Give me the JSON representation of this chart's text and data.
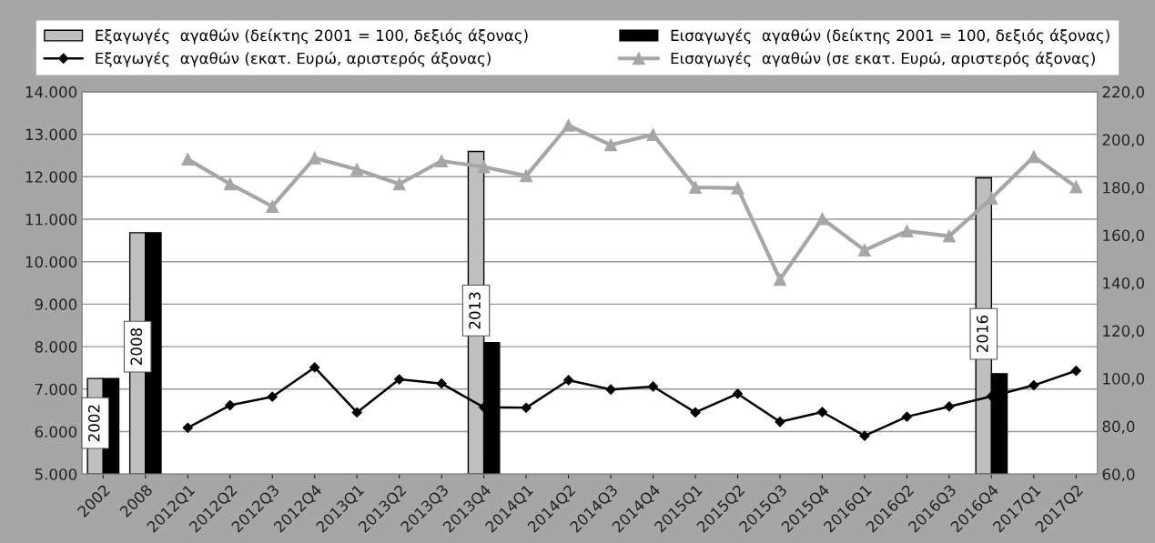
{
  "chart_data": {
    "type": "line",
    "categories": [
      "2002",
      "2008",
      "2012Q1",
      "2012Q2",
      "2012Q3",
      "2012Q4",
      "2013Q1",
      "2013Q2",
      "2013Q3",
      "2013Q4",
      "2014Q1",
      "2014Q2",
      "2014Q3",
      "2014Q4",
      "2015Q1",
      "2015Q2",
      "2015Q3",
      "2015Q4",
      "2016Q1",
      "2016Q2",
      "2016Q3",
      "2016Q4",
      "2017Q1",
      "2017Q2"
    ],
    "series": [
      {
        "name": "Εξαγωγές  αγαθών (δείκτης 2001 = 100, δεξιός άξονας)",
        "type": "bar",
        "axis": "y2",
        "color": "#bfbfbf",
        "values": [
          100,
          161,
          null,
          null,
          null,
          null,
          null,
          null,
          null,
          195,
          null,
          null,
          null,
          null,
          null,
          null,
          null,
          null,
          null,
          null,
          null,
          184,
          null,
          null
        ]
      },
      {
        "name": "Εισαγωγές  αγαθών (δείκτης 2001 = 100, δεξιός άξονας)",
        "type": "bar",
        "axis": "y2",
        "color": "#000000",
        "values": [
          100,
          161,
          null,
          null,
          null,
          null,
          null,
          null,
          null,
          115,
          null,
          null,
          null,
          null,
          null,
          null,
          null,
          null,
          null,
          null,
          null,
          102,
          null,
          null
        ]
      },
      {
        "name": "Εξαγωγές  αγαθών (εκατ. Ευρώ, αριστερός άξονας)",
        "color": "#000000",
        "marker": "diamond",
        "values": [
          null,
          null,
          6090,
          6620,
          6820,
          7510,
          6450,
          7230,
          7130,
          6570,
          6560,
          7210,
          6990,
          7060,
          6450,
          6890,
          6230,
          6460,
          5900,
          6350,
          6590,
          6830,
          7090,
          7430
        ]
      },
      {
        "name": "Εισαγωγές  αγαθών (σε εκατ. Ευρώ, αριστερός άξονας)",
        "color": "#a6a6a6",
        "marker": "triangle",
        "values": [
          null,
          null,
          12410,
          11830,
          11300,
          12440,
          12170,
          11830,
          12370,
          12230,
          12020,
          13210,
          12750,
          12990,
          11750,
          11730,
          9580,
          11010,
          10270,
          10720,
          10600,
          11490,
          12470,
          11760
        ]
      }
    ],
    "ylim": [
      5000,
      14000
    ],
    "yticks": [
      {
        "value": 5000,
        "label": "5.000"
      },
      {
        "value": 6000,
        "label": "6.000"
      },
      {
        "value": 7000,
        "label": "7.000"
      },
      {
        "value": 8000,
        "label": "8.000"
      },
      {
        "value": 9000,
        "label": "9.000"
      },
      {
        "value": 10000,
        "label": "10.000"
      },
      {
        "value": 11000,
        "label": "11.000"
      },
      {
        "value": 12000,
        "label": "12.000"
      },
      {
        "value": 13000,
        "label": "13.000"
      },
      {
        "value": 14000,
        "label": "14.000"
      }
    ],
    "y2lim": [
      60,
      220
    ],
    "y2ticks": [
      {
        "value": 60,
        "label": "60,0"
      },
      {
        "value": 80,
        "label": "80,0"
      },
      {
        "value": 100,
        "label": "100,0"
      },
      {
        "value": 120,
        "label": "120,0"
      },
      {
        "value": 140,
        "label": "140,0"
      },
      {
        "value": 160,
        "label": "160,0"
      },
      {
        "value": 180,
        "label": "180,0"
      },
      {
        "value": 200,
        "label": "200,0"
      },
      {
        "value": 220,
        "label": "220,0"
      }
    ],
    "annotations": [
      {
        "text": "2002",
        "x": "2002",
        "y": 6200
      },
      {
        "text": "2008",
        "x": "2008",
        "y": 8000
      },
      {
        "text": "2013",
        "x": "2013Q4",
        "y": 8850
      },
      {
        "text": "2016",
        "x": "2016Q4",
        "y": 8300
      }
    ],
    "grid": "y",
    "legend": "top",
    "line_style": "solid"
  }
}
